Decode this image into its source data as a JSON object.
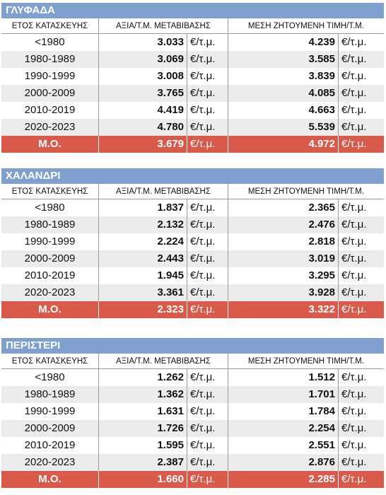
{
  "columns": {
    "year": "ΕΤΟΣ ΚΑΤΑΣΚΕΥΗΣ",
    "sale": "ΑΞΙΑ/Τ.Μ. ΜΕΤΑΒΙΒΑΣΗΣ",
    "ask": "ΜΕΣΗ ΖΗΤΟΥΜΕΝΗ ΤΙΜΗ/Τ.Μ."
  },
  "unit": "€/τ.μ.",
  "colors": {
    "title_bar": "#7f9fcf",
    "average_row": "#d9594a",
    "alt_row": "#ececec"
  },
  "tables": [
    {
      "title": "ΓΛΥΦΑΔΑ",
      "rows": [
        {
          "year": "<1980",
          "sale": "3.033",
          "ask": "4.239"
        },
        {
          "year": "1980-1989",
          "sale": "3.069",
          "ask": "3.585"
        },
        {
          "year": "1990-1999",
          "sale": "3.008",
          "ask": "3.839"
        },
        {
          "year": "2000-2009",
          "sale": "3.765",
          "ask": "4.085"
        },
        {
          "year": "2010-2019",
          "sale": "4.419",
          "ask": "4.663"
        },
        {
          "year": "2020-2023",
          "sale": "4.780",
          "ask": "5.539"
        }
      ],
      "average": {
        "year": "Μ.Ο.",
        "sale": "3.679",
        "ask": "4.972"
      }
    },
    {
      "title": "ΧΑΛΑΝΔΡΙ",
      "rows": [
        {
          "year": "<1980",
          "sale": "1.837",
          "ask": "2.365"
        },
        {
          "year": "1980-1989",
          "sale": "2.132",
          "ask": "2.476"
        },
        {
          "year": "1990-1999",
          "sale": "2.224",
          "ask": "2.818"
        },
        {
          "year": "2000-2009",
          "sale": "2.443",
          "ask": "3.019"
        },
        {
          "year": "2010-2019",
          "sale": "1.945",
          "ask": "3.295"
        },
        {
          "year": "2020-2023",
          "sale": "3.361",
          "ask": "3.928"
        }
      ],
      "average": {
        "year": "Μ.Ο.",
        "sale": "2.323",
        "ask": "3.322"
      }
    },
    {
      "title": "ΠΕΡΙΣΤΕΡΙ",
      "rows": [
        {
          "year": "<1980",
          "sale": "1.262",
          "ask": "1.512"
        },
        {
          "year": "1980-1989",
          "sale": "1.362",
          "ask": "1.701"
        },
        {
          "year": "1990-1999",
          "sale": "1.631",
          "ask": "1.784"
        },
        {
          "year": "2000-2009",
          "sale": "1.726",
          "ask": "2.254"
        },
        {
          "year": "2010-2019",
          "sale": "1.595",
          "ask": "2.551"
        },
        {
          "year": "2020-2023",
          "sale": "2.387",
          "ask": "2.876"
        }
      ],
      "average": {
        "year": "Μ.Ο.",
        "sale": "1.660",
        "ask": "2.285"
      }
    }
  ]
}
